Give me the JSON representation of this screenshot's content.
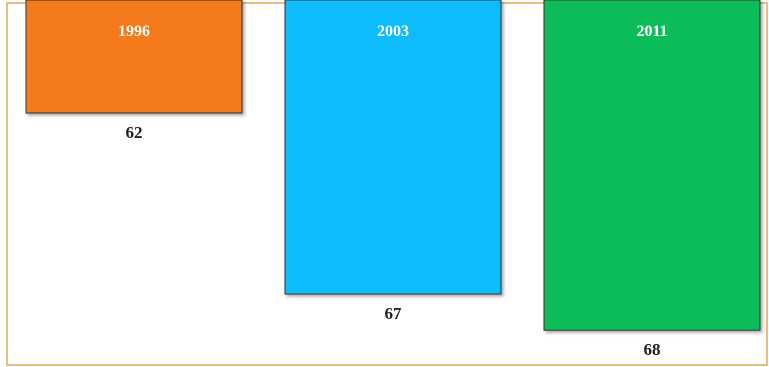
{
  "chart_data": {
    "type": "bar",
    "categories": [
      "1996",
      "2003",
      "2011"
    ],
    "values": [
      62,
      67,
      68
    ],
    "colors": [
      "#f47a1c",
      "#0abdfb",
      "#08bd5a"
    ],
    "title": "",
    "xlabel": "",
    "ylabel": "",
    "orientation": "downward",
    "grid": false,
    "legend": "none"
  }
}
